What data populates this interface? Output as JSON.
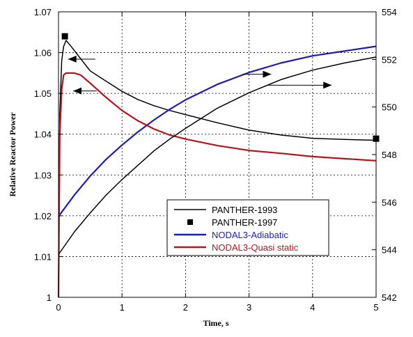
{
  "chart_data": {
    "type": "line",
    "xlabel": "Time, s",
    "ylabel": "Relative Reactor Power",
    "ylabel_right": "",
    "xlim": [
      0,
      5
    ],
    "ylim": [
      1,
      1.07
    ],
    "ylim_right": [
      542,
      554
    ],
    "x_ticks": [
      "0",
      "1",
      "2",
      "3",
      "4",
      "5"
    ],
    "y_ticks": [
      "1",
      "1.01",
      "1.02",
      "1.03",
      "1.04",
      "1.05",
      "1.06",
      "1.07"
    ],
    "y_ticks_right": [
      "542",
      "544",
      "546",
      "548",
      "550",
      "552",
      "554"
    ],
    "grid": true,
    "legend_position": "lower-right",
    "series": [
      {
        "name": "PANTHER-1993",
        "color": "#000000",
        "axis": "left",
        "x": [
          0,
          0.02,
          0.05,
          0.08,
          0.12,
          0.2,
          0.35,
          0.5,
          0.75,
          1.0,
          1.25,
          1.5,
          1.75,
          2.0,
          2.5,
          3.0,
          3.5,
          4.0,
          4.5,
          5.0
        ],
        "y": [
          1.0,
          1.045,
          1.058,
          1.0615,
          1.063,
          1.0615,
          1.0585,
          1.0555,
          1.053,
          1.0505,
          1.0485,
          1.047,
          1.0458,
          1.0448,
          1.0428,
          1.041,
          1.0398,
          1.039,
          1.0387,
          1.0385
        ]
      },
      {
        "name": "PANTHER-1997",
        "color": "#000000",
        "axis": "left",
        "marker": "square",
        "x": [
          0.1,
          5.0
        ],
        "y": [
          1.064,
          1.0389
        ]
      },
      {
        "name": "NODAL3-Adiabatic",
        "color": "#1c1cb4",
        "axis": "right",
        "x": [
          0,
          0.25,
          0.5,
          0.75,
          1.0,
          1.25,
          1.5,
          1.75,
          2.0,
          2.5,
          3.0,
          3.5,
          4.0,
          4.5,
          5.0
        ],
        "y": [
          545.4,
          546.3,
          547.1,
          547.8,
          548.4,
          548.95,
          549.45,
          549.9,
          550.3,
          550.95,
          551.45,
          551.85,
          552.15,
          552.35,
          552.55
        ]
      },
      {
        "name": "NODAL3-Quasi static",
        "color": "#b4141c",
        "axis": "left",
        "x": [
          0,
          0.02,
          0.05,
          0.08,
          0.12,
          0.25,
          0.35,
          0.5,
          0.75,
          1.0,
          1.25,
          1.5,
          1.75,
          2.0,
          2.5,
          3.0,
          3.5,
          4.0,
          4.5,
          5.0
        ],
        "y": [
          1.0,
          1.04,
          1.051,
          1.0545,
          1.055,
          1.055,
          1.0545,
          1.0525,
          1.049,
          1.0458,
          1.0433,
          1.0413,
          1.0398,
          1.0388,
          1.0372,
          1.036,
          1.0353,
          1.0345,
          1.034,
          1.0335
        ]
      },
      {
        "name": "",
        "color": "#000000",
        "axis": "right",
        "x": [
          0,
          0.25,
          0.5,
          0.75,
          1.0,
          1.25,
          1.5,
          1.75,
          2.0,
          2.5,
          3.0,
          3.5,
          4.0,
          4.5,
          5.0
        ],
        "y": [
          543.8,
          544.75,
          545.55,
          546.3,
          546.95,
          547.55,
          548.15,
          548.65,
          549.1,
          549.95,
          550.6,
          551.15,
          551.55,
          551.85,
          552.1
        ]
      }
    ],
    "annotations": [
      {
        "type": "arrow",
        "direction": "left",
        "axis": "left",
        "x_from": 0.58,
        "x_to": 0.15,
        "y": 1.0584
      },
      {
        "type": "arrow",
        "direction": "left",
        "axis": "left",
        "x_from": 0.6,
        "x_to": 0.23,
        "y": 1.0506
      },
      {
        "type": "arrow",
        "direction": "right",
        "axis": "left",
        "x_from": 2.9,
        "x_to": 3.35,
        "y": 1.0547
      },
      {
        "type": "arrow",
        "direction": "right",
        "axis": "left",
        "x_from": 3.3,
        "x_to": 4.3,
        "y": 1.052
      }
    ]
  }
}
